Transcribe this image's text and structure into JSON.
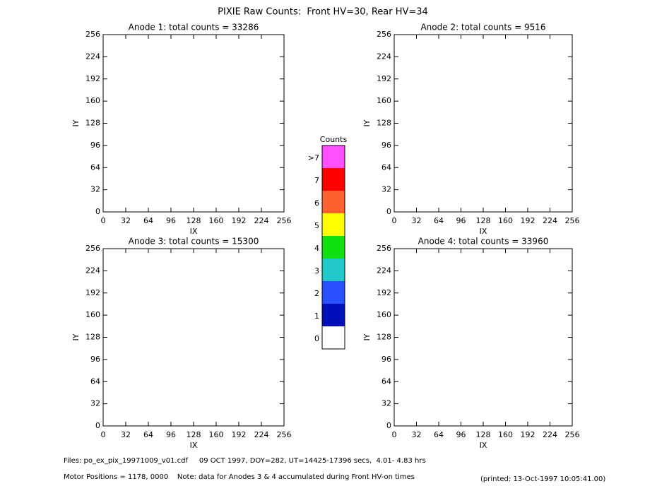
{
  "title": "PIXIE Raw Counts:  Front HV=30, Rear HV=34",
  "chart_data": [
    {
      "type": "image",
      "title": "Anode 1: total counts = 33286",
      "xlabel": "IX",
      "ylabel": "IY",
      "xlim": [
        0,
        256
      ],
      "ylim": [
        0,
        256
      ],
      "xticks": [
        0,
        32,
        64,
        96,
        128,
        160,
        192,
        224,
        256
      ],
      "yticks": [
        0,
        32,
        64,
        96,
        128,
        160,
        192,
        224,
        256
      ]
    },
    {
      "type": "image",
      "title": "Anode 2: total counts = 9516",
      "xlabel": "IX",
      "ylabel": "IY",
      "xlim": [
        0,
        256
      ],
      "ylim": [
        0,
        256
      ],
      "xticks": [
        0,
        32,
        64,
        96,
        128,
        160,
        192,
        224,
        256
      ],
      "yticks": [
        0,
        32,
        64,
        96,
        128,
        160,
        192,
        224,
        256
      ]
    },
    {
      "type": "image",
      "title": "Anode 3: total counts = 15300",
      "xlabel": "IX",
      "ylabel": "IY",
      "xlim": [
        0,
        256
      ],
      "ylim": [
        0,
        256
      ],
      "xticks": [
        0,
        32,
        64,
        96,
        128,
        160,
        192,
        224,
        256
      ],
      "yticks": [
        0,
        32,
        64,
        96,
        128,
        160,
        192,
        224,
        256
      ]
    },
    {
      "type": "image",
      "title": "Anode 4: total counts = 33960",
      "xlabel": "IX",
      "ylabel": "IY",
      "xlim": [
        0,
        256
      ],
      "ylim": [
        0,
        256
      ],
      "xticks": [
        0,
        32,
        64,
        96,
        128,
        160,
        192,
        224,
        256
      ],
      "yticks": [
        0,
        32,
        64,
        96,
        128,
        160,
        192,
        224,
        256
      ]
    }
  ],
  "colorbar": {
    "title": "Counts",
    "categories": [
      "0",
      "1",
      "2",
      "3",
      "4",
      "5",
      "6",
      "7",
      ">7"
    ],
    "colors": [
      "#ffffff",
      "#0010b8",
      "#2850ff",
      "#20c8c8",
      "#10e010",
      "#ffff00",
      "#ff6030",
      "#ff0000",
      "#ff50ff"
    ]
  },
  "footer": {
    "files": "Files: po_ex_pix_19971009_v01.cdf     09 OCT 1997, DOY=282, UT=14425-17396 secs,  4.01- 4.83 hrs",
    "motor": "Motor Positions = 1178, 0000    Note: data for Anodes 3 & 4 accumulated during Front HV-on times",
    "printed": "(printed: 13-Oct-1997 10:05:41.00)"
  }
}
